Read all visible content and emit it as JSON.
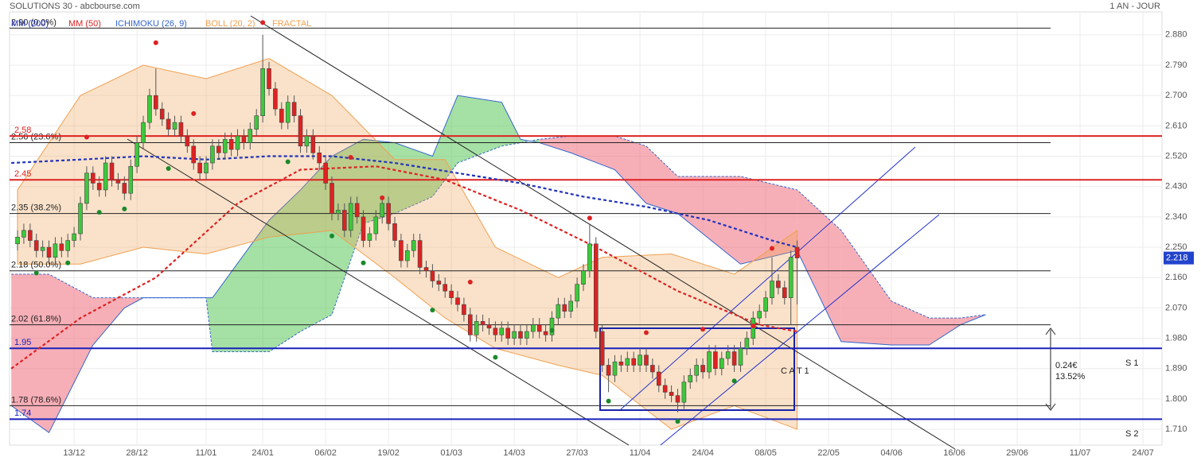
{
  "chart_data": {
    "type": "candlestick",
    "title": "SOLUTIONS 30 - abcbourse.com",
    "subtitle": "1 AN - JOUR",
    "xlim": [
      -1.27,
      182.03
    ],
    "ylim": [
      1.663,
      2.948
    ],
    "grid": true,
    "xticks": [
      {
        "value": 9,
        "label": "13/12"
      },
      {
        "value": 19,
        "label": "28/12"
      },
      {
        "value": 30,
        "label": "11/01"
      },
      {
        "value": 39,
        "label": "24/01"
      },
      {
        "value": 49,
        "label": "06/02"
      },
      {
        "value": 59,
        "label": "19/02"
      },
      {
        "value": 69,
        "label": "01/03"
      },
      {
        "value": 79,
        "label": "14/03"
      },
      {
        "value": 89,
        "label": "27/03"
      },
      {
        "value": 99,
        "label": "11/04"
      },
      {
        "value": 109,
        "label": "24/04"
      },
      {
        "value": 119,
        "label": "08/05"
      },
      {
        "value": 129,
        "label": "22/05"
      },
      {
        "value": 139,
        "label": "04/06"
      },
      {
        "value": 149,
        "label": "16/06"
      },
      {
        "value": 159,
        "label": "29/06"
      },
      {
        "value": 169,
        "label": "11/07"
      },
      {
        "value": 179,
        "label": "24/07"
      }
    ],
    "yticks": [
      {
        "value": 2.88,
        "label": "2.880"
      },
      {
        "value": 2.79,
        "label": "2.790"
      },
      {
        "value": 2.7,
        "label": "2.700"
      },
      {
        "value": 2.61,
        "label": "2.610"
      },
      {
        "value": 2.52,
        "label": "2.520"
      },
      {
        "value": 2.43,
        "label": "2.430"
      },
      {
        "value": 2.34,
        "label": "2.340"
      },
      {
        "value": 2.25,
        "label": "2.250"
      },
      {
        "value": 2.16,
        "label": "2.160"
      },
      {
        "value": 2.07,
        "label": "2.070"
      },
      {
        "value": 1.98,
        "label": "1.980"
      },
      {
        "value": 1.89,
        "label": "1.890"
      },
      {
        "value": 1.8,
        "label": "1.800"
      },
      {
        "value": 1.71,
        "label": "1.710"
      }
    ],
    "last": 2.218,
    "up_color": "#3cc83c",
    "down_color": "#dd2222",
    "candles": {
      "x": [
        0,
        1,
        2,
        3,
        4,
        5,
        6,
        7,
        8,
        9,
        10,
        11,
        12,
        13,
        14,
        15,
        16,
        17,
        18,
        19,
        20,
        21,
        22,
        23,
        24,
        25,
        26,
        27,
        28,
        29,
        30,
        31,
        32,
        33,
        34,
        35,
        36,
        37,
        38,
        39,
        40,
        41,
        42,
        43,
        44,
        45,
        46,
        47,
        48,
        49,
        50,
        51,
        52,
        53,
        54,
        55,
        56,
        57,
        58,
        59,
        60,
        61,
        62,
        63,
        64,
        65,
        66,
        67,
        68,
        69,
        70,
        71,
        72,
        73,
        74,
        75,
        76,
        77,
        78,
        79,
        80,
        81,
        82,
        83,
        84,
        85,
        86,
        87,
        88,
        89,
        90,
        91,
        92,
        93,
        94,
        95,
        96,
        97,
        98,
        99,
        100,
        101,
        102,
        103,
        104,
        105,
        106,
        107,
        108,
        109,
        110,
        111,
        112,
        113,
        114,
        115,
        116,
        117,
        118,
        119,
        120,
        121,
        122,
        123,
        124
      ],
      "open": [
        2.26,
        2.28,
        2.3,
        2.27,
        2.24,
        2.25,
        2.22,
        2.26,
        2.24,
        2.27,
        2.29,
        2.38,
        2.47,
        2.44,
        2.42,
        2.5,
        2.45,
        2.44,
        2.41,
        2.49,
        2.56,
        2.62,
        2.7,
        2.66,
        2.63,
        2.6,
        2.62,
        2.58,
        2.55,
        2.5,
        2.47,
        2.5,
        2.55,
        2.53,
        2.57,
        2.54,
        2.58,
        2.56,
        2.6,
        2.64,
        2.78,
        2.72,
        2.66,
        2.62,
        2.68,
        2.64,
        2.55,
        2.58,
        2.53,
        2.5,
        2.44,
        2.35,
        2.36,
        2.3,
        2.38,
        2.34,
        2.27,
        2.29,
        2.34,
        2.38,
        2.32,
        2.27,
        2.21,
        2.24,
        2.27,
        2.19,
        2.18,
        2.15,
        2.14,
        2.12,
        2.1,
        2.08,
        2.05,
        1.99,
        2.03,
        2.02,
        2.01,
        1.99,
        2.01,
        1.98,
        2.0,
        1.98,
        2.0,
        2.02,
        2.0,
        1.99,
        2.04,
        2.08,
        2.06,
        2.09,
        2.14,
        2.18,
        2.26,
        2.0,
        1.9,
        1.87,
        1.91,
        1.9,
        1.92,
        1.9,
        1.93,
        1.9,
        1.88,
        1.84,
        1.82,
        1.81,
        1.79,
        1.85,
        1.87,
        1.9,
        1.88,
        1.94,
        1.89,
        1.92,
        1.94,
        1.9,
        1.95,
        1.98,
        2.04,
        2.06,
        2.1,
        2.15,
        2.13,
        2.1,
        2.25
      ],
      "close": [
        2.28,
        2.3,
        2.27,
        2.24,
        2.25,
        2.22,
        2.26,
        2.24,
        2.27,
        2.29,
        2.38,
        2.47,
        2.44,
        2.42,
        2.5,
        2.45,
        2.44,
        2.41,
        2.49,
        2.56,
        2.62,
        2.7,
        2.66,
        2.63,
        2.6,
        2.62,
        2.58,
        2.55,
        2.5,
        2.47,
        2.5,
        2.55,
        2.53,
        2.57,
        2.54,
        2.58,
        2.56,
        2.6,
        2.64,
        2.78,
        2.72,
        2.66,
        2.62,
        2.68,
        2.64,
        2.55,
        2.58,
        2.53,
        2.5,
        2.44,
        2.35,
        2.36,
        2.3,
        2.38,
        2.34,
        2.27,
        2.29,
        2.34,
        2.38,
        2.32,
        2.27,
        2.21,
        2.24,
        2.27,
        2.19,
        2.18,
        2.15,
        2.14,
        2.12,
        2.1,
        2.08,
        2.05,
        1.99,
        2.03,
        2.02,
        2.01,
        1.99,
        2.01,
        1.98,
        2.0,
        1.98,
        2.0,
        2.02,
        2.0,
        1.99,
        2.04,
        2.08,
        2.06,
        2.09,
        2.14,
        2.18,
        2.26,
        2.0,
        1.9,
        1.87,
        1.91,
        1.9,
        1.92,
        1.9,
        1.93,
        1.9,
        1.88,
        1.84,
        1.82,
        1.81,
        1.79,
        1.85,
        1.87,
        1.9,
        1.88,
        1.94,
        1.89,
        1.92,
        1.94,
        1.9,
        1.95,
        1.98,
        2.04,
        2.06,
        2.1,
        2.15,
        2.13,
        2.1,
        2.22,
        2.218
      ],
      "high": [
        2.3,
        2.32,
        2.32,
        2.29,
        2.27,
        2.27,
        2.28,
        2.28,
        2.29,
        2.31,
        2.4,
        2.49,
        2.49,
        2.46,
        2.52,
        2.52,
        2.47,
        2.46,
        2.51,
        2.58,
        2.64,
        2.72,
        2.78,
        2.68,
        2.65,
        2.64,
        2.64,
        2.6,
        2.57,
        2.52,
        2.52,
        2.57,
        2.57,
        2.59,
        2.59,
        2.6,
        2.6,
        2.62,
        2.66,
        2.88,
        2.8,
        2.74,
        2.68,
        2.7,
        2.7,
        2.66,
        2.6,
        2.6,
        2.55,
        2.52,
        2.46,
        2.38,
        2.38,
        2.4,
        2.4,
        2.36,
        2.31,
        2.36,
        2.4,
        2.4,
        2.34,
        2.29,
        2.26,
        2.29,
        2.29,
        2.21,
        2.2,
        2.17,
        2.16,
        2.14,
        2.12,
        2.1,
        2.07,
        2.05,
        2.05,
        2.04,
        2.03,
        2.03,
        2.03,
        2.02,
        2.02,
        2.02,
        2.04,
        2.04,
        2.02,
        2.06,
        2.1,
        2.1,
        2.11,
        2.16,
        2.2,
        2.32,
        2.28,
        2.02,
        1.92,
        1.93,
        1.93,
        1.94,
        1.94,
        1.95,
        1.95,
        1.92,
        1.9,
        1.86,
        1.84,
        1.83,
        1.87,
        1.89,
        1.92,
        1.92,
        1.96,
        1.96,
        1.94,
        1.96,
        1.96,
        1.97,
        2.0,
        2.06,
        2.08,
        2.12,
        2.22,
        2.17,
        2.15,
        2.24,
        2.27
      ],
      "low": [
        2.24,
        2.26,
        2.25,
        2.22,
        2.22,
        2.2,
        2.2,
        2.22,
        2.22,
        2.25,
        2.27,
        2.36,
        2.42,
        2.4,
        2.4,
        2.43,
        2.42,
        2.39,
        2.39,
        2.47,
        2.54,
        2.6,
        2.64,
        2.61,
        2.58,
        2.58,
        2.56,
        2.53,
        2.48,
        2.45,
        2.45,
        2.48,
        2.51,
        2.51,
        2.52,
        2.52,
        2.54,
        2.54,
        2.58,
        2.62,
        2.7,
        2.64,
        2.6,
        2.6,
        2.62,
        2.53,
        2.53,
        2.51,
        2.48,
        2.42,
        2.33,
        2.33,
        2.28,
        2.28,
        2.32,
        2.25,
        2.25,
        2.27,
        2.32,
        2.3,
        2.25,
        2.19,
        2.19,
        2.22,
        2.17,
        2.16,
        2.13,
        2.12,
        2.1,
        2.08,
        2.06,
        2.03,
        1.97,
        1.97,
        2.0,
        1.99,
        1.97,
        1.97,
        1.96,
        1.96,
        1.96,
        1.96,
        1.98,
        1.98,
        1.97,
        1.97,
        2.02,
        2.04,
        2.04,
        2.07,
        2.12,
        2.16,
        1.98,
        1.88,
        1.82,
        1.85,
        1.88,
        1.88,
        1.88,
        1.88,
        1.88,
        1.86,
        1.82,
        1.8,
        1.79,
        1.76,
        1.77,
        1.83,
        1.85,
        1.86,
        1.86,
        1.87,
        1.87,
        1.9,
        1.88,
        1.88,
        1.93,
        1.96,
        2.02,
        2.04,
        2.08,
        2.11,
        2.08,
        2.02,
        2.08
      ]
    },
    "series": [
      {
        "name": "MM (200)",
        "color": "#2233bb",
        "x": [
          -1,
          10,
          20,
          30,
          40,
          50,
          60,
          70,
          80,
          90,
          100,
          110,
          120,
          124
        ],
        "values": [
          2.5,
          2.51,
          2.52,
          2.51,
          2.52,
          2.52,
          2.5,
          2.47,
          2.44,
          2.4,
          2.37,
          2.33,
          2.27,
          2.25
        ]
      },
      {
        "name": "MM (50)",
        "color": "#dd2222",
        "x": [
          -1,
          10,
          22,
          35,
          45,
          57,
          68,
          80,
          92,
          105,
          118,
          124
        ],
        "values": [
          1.89,
          2.04,
          2.16,
          2.38,
          2.48,
          2.49,
          2.45,
          2.36,
          2.25,
          2.12,
          2.02,
          2.0
        ]
      },
      {
        "name": "ICHIMOKU (26, 9)",
        "color": "#3366cc",
        "x": [
          -1,
          5,
          12,
          17,
          20,
          30,
          31,
          40,
          45,
          50,
          55,
          60,
          66,
          70,
          77,
          80,
          83,
          88,
          95,
          100,
          105,
          115,
          124,
          131,
          139,
          145,
          150,
          154
        ],
        "span_a": [
          1.78,
          1.7,
          1.96,
          2.07,
          2.1,
          2.1,
          2.1,
          2.33,
          2.42,
          2.52,
          2.57,
          2.56,
          2.52,
          2.7,
          2.68,
          2.57,
          2.56,
          2.53,
          2.48,
          2.38,
          2.35,
          2.2,
          2.24,
          1.97,
          1.96,
          1.96,
          2.02,
          2.05
        ],
        "span_b": [
          2.17,
          2.17,
          2.1,
          2.1,
          2.1,
          2.1,
          1.94,
          1.94,
          2.0,
          2.05,
          2.32,
          2.35,
          2.4,
          2.5,
          2.55,
          2.56,
          2.57,
          2.58,
          2.58,
          2.55,
          2.46,
          2.46,
          2.42,
          2.3,
          2.09,
          2.04,
          2.04,
          2.05
        ],
        "up_color": "#4cc24c",
        "down_color": "#f06070"
      },
      {
        "name": "BOLL (20, 2)",
        "color": "#f0a050",
        "x": [
          0,
          10,
          20,
          30,
          40,
          50,
          60,
          68,
          76,
          86,
          93,
          104,
          114,
          124
        ],
        "upper": [
          2.42,
          2.7,
          2.79,
          2.75,
          2.81,
          2.7,
          2.51,
          2.51,
          2.25,
          2.16,
          2.22,
          2.23,
          2.17,
          2.3
        ],
        "lower": [
          2.2,
          2.2,
          2.25,
          2.23,
          2.28,
          2.3,
          2.16,
          2.04,
          1.95,
          1.9,
          1.87,
          1.71,
          1.78,
          1.71
        ]
      },
      {
        "name": "FRACTAL",
        "color": "#f0a050",
        "high_color": "#dd2222",
        "low_color": "#1a8a2a",
        "highs": {
          "x": [
            11,
            22,
            28,
            39,
            53,
            58,
            72,
            91,
            100,
            109,
            117,
            120
          ],
          "values": [
            2.56,
            2.84,
            2.63,
            2.9,
            2.5,
            2.38,
            2.13,
            2.32,
            1.98,
            1.99,
            2.0,
            2.23
          ]
        },
        "lows": {
          "x": [
            3,
            8,
            13,
            17,
            24,
            43,
            50,
            55,
            66,
            76,
            85,
            94,
            105,
            114
          ],
          "values": [
            2.19,
            2.22,
            2.37,
            2.38,
            2.5,
            2.52,
            2.3,
            2.22,
            2.08,
            1.94,
            2.02,
            1.81,
            1.75,
            1.87
          ]
        }
      }
    ],
    "fibonacci_levels": [
      {
        "value": 2.9,
        "label": "2.90  (0.0%)"
      },
      {
        "value": 2.56,
        "label": "2.56  (23.6%)"
      },
      {
        "value": 2.35,
        "label": "2.35  (38.2%)"
      },
      {
        "value": 2.18,
        "label": "2.18  (50.0%)"
      },
      {
        "value": 2.02,
        "label": "2.02  (61.8%)"
      },
      {
        "value": 1.78,
        "label": "1.78  (78.6%)"
      }
    ],
    "resistances": {
      "color": "#dd2222",
      "values": [
        2.58,
        2.45
      ]
    },
    "supports": {
      "color": "#1a22bb",
      "values": [
        1.95,
        1.74
      ]
    },
    "annotations": {
      "gap": "0.24€",
      "gap_pct": "13.52%",
      "s1": "S 1",
      "s2": "S 2",
      "box": "C A T 1"
    }
  }
}
